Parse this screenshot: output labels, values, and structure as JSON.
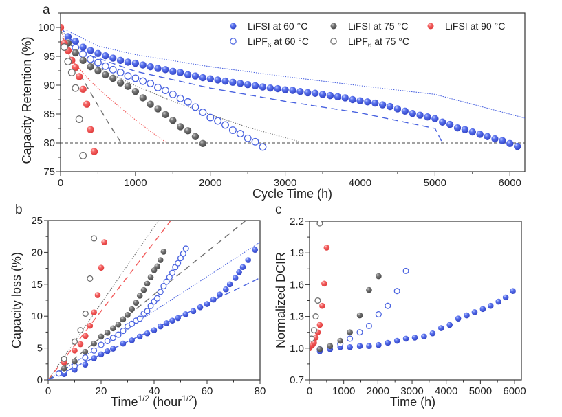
{
  "colors": {
    "blue": "#4a63e0",
    "gray": "#6e6e6e",
    "red": "#f25a5a",
    "axis": "#333333"
  },
  "chart_data": [
    {
      "panel": "a",
      "type": "scatter",
      "xlabel": "Cycle Time (h)",
      "ylabel": "Capacity Retention (%)",
      "xlim": [
        0,
        6200
      ],
      "ylim": [
        75,
        102.5
      ],
      "xticks": [
        0,
        1000,
        2000,
        3000,
        4000,
        5000,
        6000
      ],
      "yticks": [
        75,
        80,
        85,
        90,
        95,
        100
      ],
      "legend_position": "top-right",
      "legend": [
        {
          "label": "LiFSI at 60 °C",
          "marker": "filled",
          "color": "blue"
        },
        {
          "label": "LiFSI at 75 °C",
          "marker": "filled",
          "color": "gray"
        },
        {
          "label": "LiFSI at 90 °C",
          "marker": "filled",
          "color": "red"
        },
        {
          "label": "LiPF6 at 60 °C",
          "marker": "open",
          "color": "blue",
          "sub": "6",
          "pre": "LiPF",
          "post": " at 60 °C"
        },
        {
          "label": "LiPF6 at 75 °C",
          "marker": "open",
          "color": "gray",
          "sub": "6",
          "pre": "LiPF",
          "post": " at 75 °C"
        }
      ],
      "reference_line": {
        "y": 80,
        "style": "dashed",
        "color": "#444444"
      },
      "series": [
        {
          "name": "LiFSI at 60 °C",
          "marker": "filled",
          "color": "blue",
          "x": [
            100,
            200,
            300,
            400,
            500,
            600,
            700,
            800,
            900,
            1000,
            1100,
            1200,
            1300,
            1400,
            1500,
            1600,
            1700,
            1800,
            1900,
            2000,
            2100,
            2200,
            2300,
            2400,
            2500,
            2600,
            2700,
            2800,
            2900,
            3000,
            3100,
            3200,
            3300,
            3400,
            3500,
            3600,
            3700,
            3800,
            3900,
            4000,
            4100,
            4200,
            4300,
            4400,
            4500,
            4600,
            4700,
            4800,
            4900,
            5000,
            5100,
            5200,
            5300,
            5400,
            5500,
            5600,
            5700,
            5800,
            5900,
            6000,
            6100
          ],
          "y": [
            98.4,
            97.6,
            96.6,
            96.0,
            95.5,
            95.1,
            94.7,
            94.3,
            94.0,
            93.8,
            93.5,
            93.2,
            92.9,
            92.7,
            92.4,
            92.2,
            91.8,
            91.6,
            91.3,
            91.1,
            90.9,
            90.7,
            90.5,
            90.3,
            90.1,
            89.9,
            89.7,
            89.5,
            89.4,
            89.2,
            89.1,
            88.9,
            88.7,
            88.6,
            88.4,
            88.2,
            88.0,
            87.8,
            87.5,
            87.3,
            87.1,
            86.9,
            86.6,
            86.3,
            85.9,
            85.5,
            85.1,
            84.8,
            84.5,
            84.2,
            83.6,
            83.2,
            82.6,
            82.3,
            81.9,
            81.5,
            81.1,
            80.7,
            80.4,
            79.9,
            79.4
          ]
        },
        {
          "name": "LiPF6 at 60 °C",
          "marker": "open",
          "color": "blue",
          "x": [
            100,
            200,
            300,
            400,
            500,
            600,
            700,
            800,
            900,
            1000,
            1100,
            1200,
            1300,
            1400,
            1500,
            1600,
            1700,
            1800,
            1900,
            2000,
            2100,
            2200,
            2300,
            2400,
            2500,
            2600,
            2700
          ],
          "y": [
            97.5,
            96.5,
            95.4,
            94.5,
            93.9,
            93.3,
            92.7,
            92.2,
            91.6,
            91.2,
            90.7,
            90.3,
            89.6,
            89.1,
            88.4,
            87.7,
            87.1,
            86.2,
            85.3,
            84.4,
            83.8,
            83.1,
            82.2,
            81.6,
            80.8,
            80.2,
            79.3
          ]
        },
        {
          "name": "LiFSI at 75 °C",
          "marker": "filled",
          "color": "gray",
          "x": [
            100,
            200,
            300,
            400,
            500,
            600,
            700,
            800,
            900,
            1000,
            1100,
            1200,
            1300,
            1400,
            1500,
            1600,
            1700,
            1800,
            1900
          ],
          "y": [
            97.3,
            95.6,
            94.3,
            93.2,
            92.5,
            91.8,
            91.2,
            90.4,
            89.8,
            88.9,
            87.8,
            86.7,
            85.9,
            84.9,
            83.9,
            82.8,
            82.1,
            81.1,
            79.9
          ]
        },
        {
          "name": "LiFSI at 90 °C",
          "marker": "filled",
          "color": "red",
          "x": [
            0,
            50,
            100,
            150,
            200,
            250,
            300,
            350,
            400,
            450
          ],
          "y": [
            100.0,
            97.3,
            96.0,
            94.3,
            93.1,
            91.5,
            89.3,
            86.7,
            82.3,
            78.5
          ]
        },
        {
          "name": "LiPF6 at 75 °C",
          "marker": "open",
          "color": "gray",
          "x": [
            50,
            100,
            150,
            200,
            250,
            300
          ],
          "y": [
            96.6,
            94.1,
            92.2,
            89.5,
            84.1,
            77.8
          ]
        }
      ],
      "fits": [
        {
          "series": "LiFSI at 60 °C",
          "style": "dotted",
          "color": "blue",
          "x": [
            0,
            500,
            1000,
            2000,
            3000,
            4000,
            5000,
            6200
          ],
          "y": [
            100.0,
            96.8,
            95.3,
            93.2,
            91.5,
            89.9,
            88.4,
            84.3
          ]
        },
        {
          "series": "LiPF6 at 60 °C",
          "style": "dashed",
          "color": "blue",
          "x": [
            0,
            300,
            1000,
            2000,
            3000,
            4000,
            5000,
            5100
          ],
          "y": [
            100.0,
            95.6,
            92.4,
            89.5,
            87.2,
            85.2,
            82.5,
            80.0
          ]
        },
        {
          "series": "LiFSI at 75 °C",
          "style": "dotted",
          "color": "gray",
          "x": [
            0,
            200,
            600,
            1000,
            1500,
            2000,
            2500,
            3000,
            3250
          ],
          "y": [
            100.0,
            95.6,
            92.4,
            89.9,
            87.2,
            84.9,
            82.7,
            80.9,
            80.0
          ]
        },
        {
          "series": "LiFSI at 90 °C",
          "style": "dotted",
          "color": "red",
          "x": [
            0,
            100,
            200,
            400,
            600,
            800,
            1000,
            1200,
            1420
          ],
          "y": [
            100.0,
            95.5,
            93.6,
            90.7,
            88.3,
            86.1,
            84.0,
            82.0,
            80.0
          ]
        },
        {
          "series": "LiPF6 at 75 °C",
          "style": "dashed",
          "color": "gray",
          "x": [
            0,
            50,
            100,
            200,
            300,
            400,
            500,
            600,
            700,
            810
          ],
          "y": [
            100.0,
            97.0,
            95.5,
            93.2,
            91.0,
            88.7,
            86.5,
            84.3,
            82.2,
            80.0
          ]
        }
      ]
    },
    {
      "panel": "b",
      "type": "scatter",
      "xlabel": "Time^1/2 (hour^1/2)",
      "xlabel_parts": {
        "a": "Time",
        "sup1": "1/2",
        "b": " (hour",
        "sup2": "1/2",
        "c": ")"
      },
      "ylabel": "Capacity loss (%)",
      "xlim": [
        0,
        80
      ],
      "ylim": [
        0,
        25
      ],
      "xticks": [
        0,
        20,
        40,
        60,
        80
      ],
      "yticks": [
        0,
        5,
        10,
        15,
        20,
        25
      ],
      "series": [
        {
          "name": "LiFSI at 60 °C",
          "marker": "filled",
          "color": "blue",
          "x": [
            6,
            10,
            14,
            17.3,
            20,
            22.4,
            24.5,
            28.3,
            31.6,
            34.6,
            37.4,
            40,
            42.4,
            44.7,
            46.9,
            49,
            51.9,
            54.8,
            57.4,
            60,
            62.4,
            64.8,
            67.1,
            68.6,
            70.7,
            72.1,
            73.5,
            75.5,
            78.1
          ],
          "y": [
            0.9,
            1.6,
            2.4,
            3.4,
            4.0,
            4.5,
            4.9,
            5.7,
            6.2,
            6.8,
            7.3,
            7.8,
            8.4,
            8.9,
            9.3,
            9.7,
            10.3,
            10.8,
            11.4,
            11.9,
            12.6,
            13.4,
            14.2,
            15.0,
            16.0,
            16.9,
            17.7,
            18.8,
            20.4
          ]
        },
        {
          "name": "LiPF6 at 60 °C",
          "marker": "open",
          "color": "blue",
          "x": [
            4,
            6,
            10,
            14,
            17.3,
            20,
            22.4,
            24.5,
            26.5,
            28.3,
            30,
            31.6,
            33.2,
            34.6,
            36.1,
            37.4,
            38.7,
            40,
            41.2,
            42.4,
            43.6,
            44.7,
            45.8,
            46.9,
            48,
            49,
            50,
            51,
            52
          ],
          "y": [
            1.0,
            1.4,
            2.2,
            3.5,
            4.6,
            5.5,
            6.1,
            6.6,
            7.1,
            7.7,
            8.4,
            8.8,
            9.3,
            9.6,
            10.4,
            10.8,
            11.6,
            12.3,
            12.8,
            13.8,
            14.7,
            15.4,
            16.1,
            16.8,
            17.7,
            18.3,
            19.1,
            19.8,
            20.6
          ]
        },
        {
          "name": "LiFSI at 75 °C",
          "marker": "filled",
          "color": "gray",
          "x": [
            6,
            10,
            14,
            17.3,
            20,
            22.4,
            24.5,
            26.5,
            28.3,
            30,
            31.6,
            33.2,
            34.6,
            36.1,
            37.4,
            38.7,
            40,
            41.2,
            42.4,
            43.6
          ],
          "y": [
            1.8,
            2.9,
            4.4,
            5.7,
            6.8,
            7.4,
            8.1,
            8.7,
            9.5,
            10.2,
            11.1,
            12.1,
            13.2,
            14.1,
            15.1,
            16.1,
            17.2,
            17.8,
            18.8,
            20.1
          ]
        },
        {
          "name": "LiFSI at 90 °C",
          "marker": "filled",
          "color": "red",
          "x": [
            6,
            10,
            12.2,
            14.1,
            15.8,
            17.3,
            18.7,
            20,
            21.2
          ],
          "y": [
            2.7,
            4.6,
            5.6,
            6.9,
            8.5,
            10.6,
            13.3,
            17.6,
            21.6
          ]
        },
        {
          "name": "LiPF6 at 75 °C",
          "marker": "open",
          "color": "gray",
          "x": [
            6,
            10,
            12.2,
            14.1,
            15.8,
            17.3
          ],
          "y": [
            3.3,
            6.0,
            7.8,
            10.4,
            15.9,
            22.2
          ]
        }
      ],
      "fits": [
        {
          "series": "LiPF6 at 75 °C",
          "style": "dotted",
          "color": "gray",
          "slope": 0.6
        },
        {
          "series": "LiFSI at 90 °C",
          "style": "dashed",
          "color": "red",
          "slope": 0.54
        },
        {
          "series": "LiFSI at 75 °C",
          "style": "dashed",
          "color": "gray",
          "slope": 0.335
        },
        {
          "series": "LiPF6 at 60 °C",
          "style": "dotted",
          "color": "blue",
          "slope": 0.27
        },
        {
          "series": "LiFSI at 60 °C",
          "style": "dashed",
          "color": "blue",
          "slope": 0.2
        }
      ]
    },
    {
      "panel": "c",
      "type": "scatter",
      "xlabel": "Time (h)",
      "ylabel": "Normalized DCIR",
      "xlim": [
        0,
        6200
      ],
      "ylim": [
        0.7,
        2.2
      ],
      "xticks": [
        0,
        1000,
        2000,
        3000,
        4000,
        5000,
        6000
      ],
      "yticks": [
        0.7,
        1.0,
        1.3,
        1.6,
        1.9,
        2.2
      ],
      "ytick_labels": [
        "0.7",
        "1.0",
        "1.3",
        "1.6",
        "1.9",
        "2.2"
      ],
      "series": [
        {
          "name": "LiFSI at 60 °C",
          "marker": "filled",
          "color": "blue",
          "x": [
            300,
            600,
            900,
            1180,
            1470,
            1740,
            2020,
            2290,
            2560,
            2820,
            3080,
            3350,
            3600,
            3850,
            4100,
            4350,
            4600,
            4830,
            5070,
            5300,
            5530,
            5740,
            5950
          ],
          "y": [
            0.97,
            0.99,
            1.01,
            1.01,
            1.02,
            1.02,
            1.03,
            1.05,
            1.07,
            1.09,
            1.1,
            1.11,
            1.14,
            1.19,
            1.22,
            1.28,
            1.31,
            1.34,
            1.37,
            1.4,
            1.44,
            1.48,
            1.54
          ]
        },
        {
          "name": "LiPF6 at 60 °C",
          "marker": "open",
          "color": "blue",
          "x": [
            300,
            900,
            1180,
            1470,
            1740,
            2020,
            2290,
            2560,
            2820
          ],
          "y": [
            0.99,
            1.04,
            1.09,
            1.15,
            1.21,
            1.32,
            1.4,
            1.54,
            1.73
          ]
        },
        {
          "name": "LiFSI at 75 °C",
          "marker": "filled",
          "color": "gray",
          "x": [
            300,
            600,
            900,
            1180,
            1470,
            1740,
            2020
          ],
          "y": [
            0.99,
            1.02,
            1.07,
            1.15,
            1.31,
            1.55,
            1.68
          ]
        },
        {
          "name": "LiFSI at 90 °C",
          "marker": "filled",
          "color": "red",
          "x": [
            0,
            40,
            80,
            130,
            180,
            240,
            300,
            370,
            430,
            500
          ],
          "y": [
            1.0,
            1.02,
            1.03,
            1.05,
            1.1,
            1.15,
            1.22,
            1.4,
            1.61,
            1.95
          ]
        },
        {
          "name": "LiPF6 at 75 °C",
          "marker": "open",
          "color": "gray",
          "x": [
            60,
            130,
            180,
            240,
            300
          ],
          "y": [
            1.09,
            1.17,
            1.3,
            1.45,
            2.18
          ]
        }
      ]
    }
  ],
  "panels": {
    "a": {
      "letter": "a",
      "xlabel": "Cycle Time (h)",
      "ylabel": "Capacity Retention (%)"
    },
    "b": {
      "letter": "b",
      "ylabel": "Capacity loss (%)",
      "xlabel_time": "Time",
      "xlabel_sup": "1/2",
      "xlabel_unit": " (hour",
      "xlabel_unit_sup": "1/2",
      "xlabel_close": ")"
    },
    "c": {
      "letter": "c",
      "xlabel": "Time (h)",
      "ylabel": "Normalized DCIR"
    }
  }
}
